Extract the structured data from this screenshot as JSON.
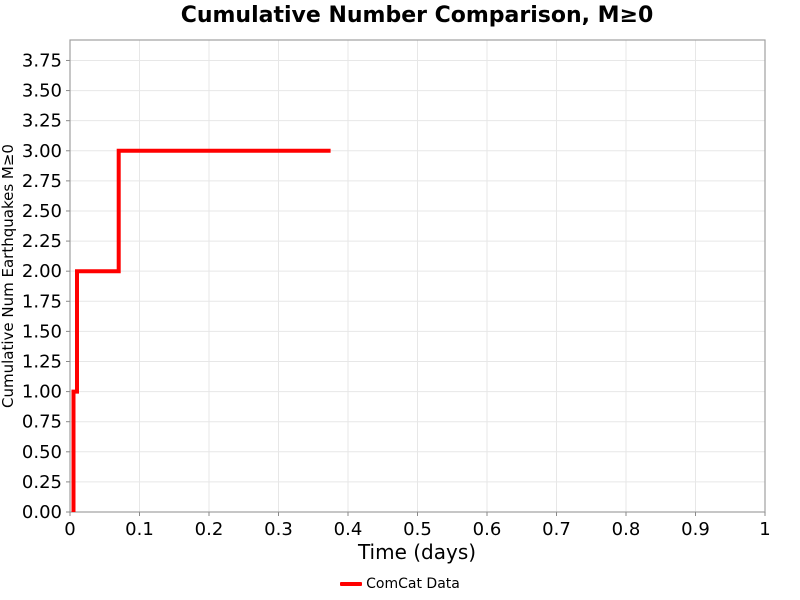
{
  "page": {
    "background": "#ffffff"
  },
  "chart_data": {
    "type": "line",
    "line_style": "step",
    "title": "Cumulative Number Comparison, M≥0",
    "xlabel": "Time (days)",
    "ylabel": "Cumulative Num Earthquakes M≥0",
    "xlim": [
      0,
      1
    ],
    "ylim": [
      0,
      3.92
    ],
    "grid": true,
    "x_ticks": {
      "values": [
        0,
        0.1,
        0.2,
        0.3,
        0.4,
        0.5,
        0.6,
        0.7,
        0.8,
        0.9,
        1
      ],
      "labels": [
        "0",
        "0.1",
        "0.2",
        "0.3",
        "0.4",
        "0.5",
        "0.6",
        "0.7",
        "0.8",
        "0.9",
        "1"
      ]
    },
    "y_ticks": {
      "values": [
        0,
        0.25,
        0.5,
        0.75,
        1,
        1.25,
        1.5,
        1.75,
        2,
        2.25,
        2.5,
        2.75,
        3,
        3.25,
        3.5,
        3.75
      ],
      "labels": [
        "0.00",
        "0.25",
        "0.50",
        "0.75",
        "1.00",
        "1.25",
        "1.50",
        "1.75",
        "2.00",
        "2.25",
        "2.50",
        "2.75",
        "3.00",
        "3.25",
        "3.50",
        "3.75"
      ]
    },
    "legend": {
      "position": "below-xlabel",
      "entries": [
        {
          "label": "ComCat Data",
          "color": "#ff0000"
        }
      ]
    },
    "series": [
      {
        "name": "ComCat Data",
        "color": "#ff0000",
        "line_width": 4,
        "points": [
          [
            0.005,
            0
          ],
          [
            0.005,
            1
          ],
          [
            0.01,
            1
          ],
          [
            0.01,
            2
          ],
          [
            0.07,
            2
          ],
          [
            0.07,
            3
          ],
          [
            0.375,
            3
          ]
        ],
        "event_times_days": [
          0.005,
          0.01,
          0.07
        ],
        "cumulative_counts": [
          1,
          2,
          3
        ]
      }
    ],
    "colors": {
      "grid": "#e7e7e7",
      "spine": "#a0a0a0",
      "tick": "#8a8a8a",
      "text": "#000000"
    }
  }
}
